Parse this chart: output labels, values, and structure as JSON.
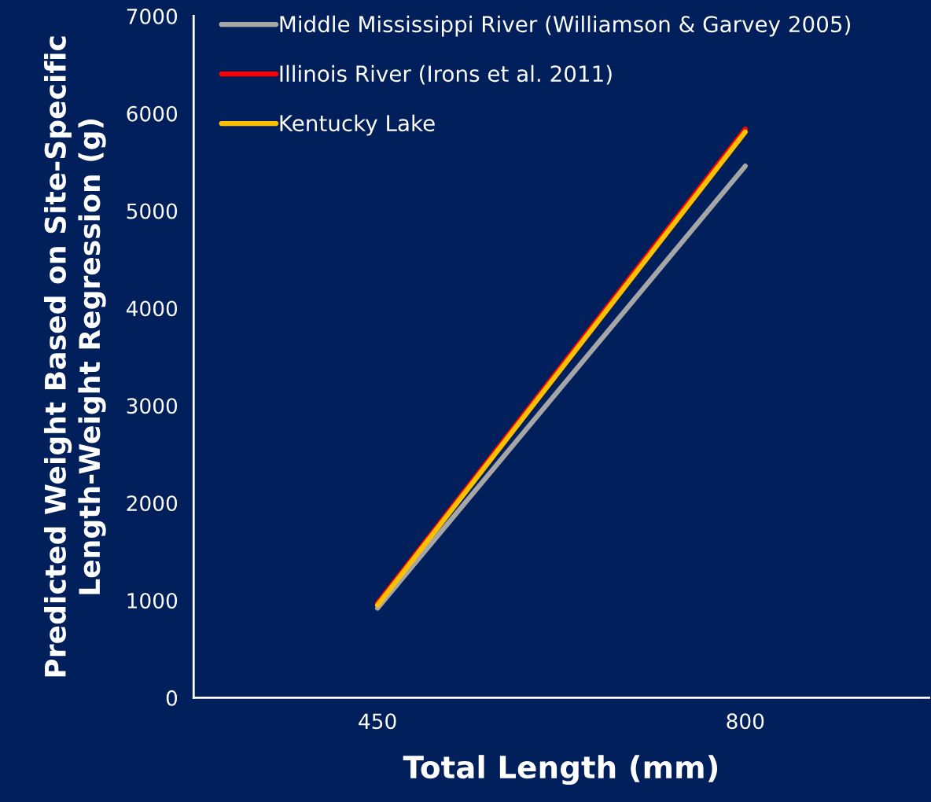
{
  "chart_data": {
    "type": "line",
    "xlabel": "Total Length (mm)",
    "ylabel": "Predicted Weight Based on Site-Specific\nLength-Weight Regression (g)",
    "x": [
      450,
      800
    ],
    "xlim": [
      275,
      975
    ],
    "xticks": [
      450,
      800
    ],
    "series": [
      {
        "name": "Middle Mississippi River (Williamson & Garvey 2005)",
        "color": "#a6a6a6",
        "values": [
          920,
          5460
        ]
      },
      {
        "name": "Illinois River (Irons et al. 2011)",
        "color": "#ff0000",
        "values": [
          970,
          5840
        ]
      },
      {
        "name": "Kentucky Lake",
        "color": "#ffc000",
        "values": [
          950,
          5810
        ]
      }
    ],
    "ylim": [
      0,
      7000
    ],
    "yticks": [
      0,
      1000,
      2000,
      3000,
      4000,
      5000,
      6000,
      7000
    ],
    "grid": false,
    "legend": "top left",
    "marker": "none",
    "line_style": "solid"
  }
}
